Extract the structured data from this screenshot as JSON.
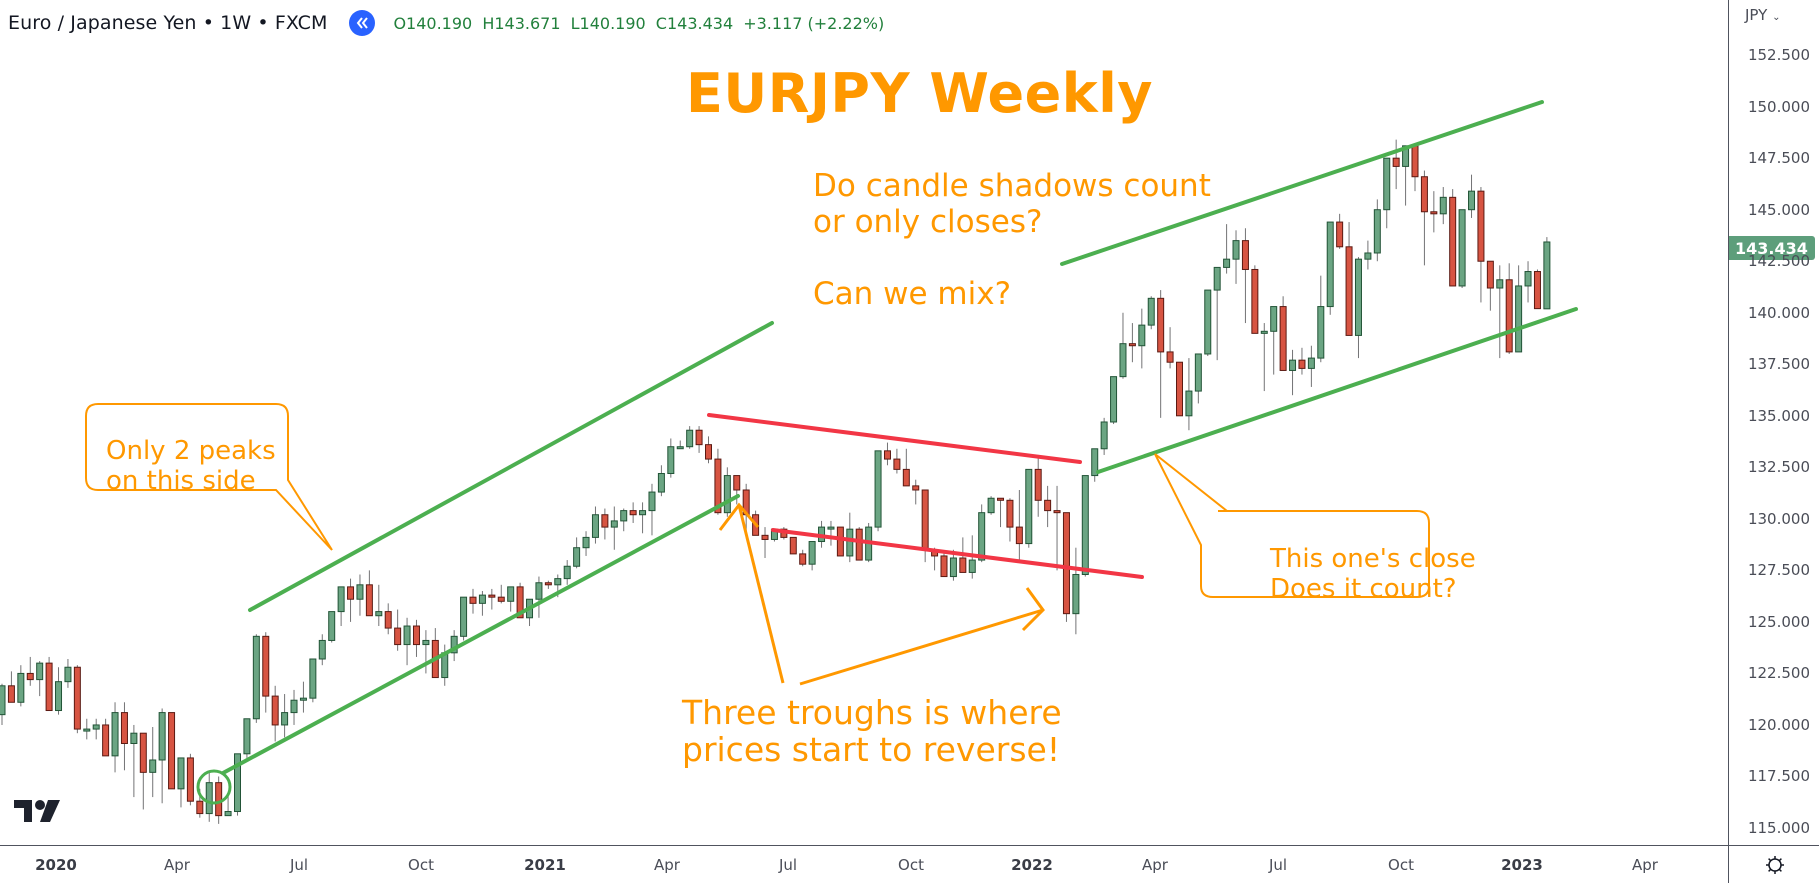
{
  "header": {
    "symbol_title": "Euro / Japanese Yen • 1W • FXCM",
    "collapse_icon": "double-chevron-left-icon",
    "ohlc": {
      "open": "O140.190",
      "high": "H143.671",
      "low": "L140.190",
      "close": "C143.434",
      "change": "+3.117 (+2.22%)"
    }
  },
  "price_axis": {
    "currency": "JPY",
    "currency_dropdown_icon": "chevron-down-icon",
    "current_price": "143.434",
    "labels": [
      "152.500",
      "150.000",
      "147.500",
      "145.000",
      "142.500",
      "140.000",
      "137.500",
      "135.000",
      "132.500",
      "130.000",
      "127.500",
      "125.000",
      "122.500",
      "120.000",
      "117.500",
      "115.000"
    ]
  },
  "time_axis": {
    "labels": [
      {
        "text": "2020",
        "year": true
      },
      {
        "text": "Apr",
        "year": false
      },
      {
        "text": "Jul",
        "year": false
      },
      {
        "text": "Oct",
        "year": false
      },
      {
        "text": "2021",
        "year": true
      },
      {
        "text": "Apr",
        "year": false
      },
      {
        "text": "Jul",
        "year": false
      },
      {
        "text": "Oct",
        "year": false
      },
      {
        "text": "2022",
        "year": true
      },
      {
        "text": "Apr",
        "year": false
      },
      {
        "text": "Jul",
        "year": false
      },
      {
        "text": "Oct",
        "year": false
      },
      {
        "text": "2023",
        "year": true
      },
      {
        "text": "Apr",
        "year": false
      }
    ],
    "settings_icon": "gear-icon"
  },
  "annotations": {
    "title": "EURJPY Weekly",
    "question_line1": "Do candle shadows count",
    "question_line2": "or only closes?",
    "question_mix": "Can we mix?",
    "callout_peaks_line1": "Only 2 peaks",
    "callout_peaks_line2": "on this side",
    "callout_close_line1": "This one's close",
    "callout_close_line2": "Does it count?",
    "troughs_line1": "Three troughs is where",
    "troughs_line2": "prices start to reverse!"
  },
  "colors": {
    "up": "#6ba583",
    "up_border": "#225437",
    "down": "#d75442",
    "down_border": "#5b1a13",
    "wick": "#737375",
    "channel_green": "#4caf50",
    "channel_red": "#f23645",
    "annotation": "#ff9800",
    "current_price_bg": "#5d9e7b"
  },
  "chart_data": {
    "type": "candlestick",
    "title": "EURJPY Weekly",
    "instrument": "Euro / Japanese Yen",
    "timeframe": "1W",
    "source": "FXCM",
    "ylabel": "JPY",
    "ylim": [
      114.0,
      154.0
    ],
    "y_ticks": [
      115.0,
      117.5,
      120.0,
      122.5,
      125.0,
      127.5,
      130.0,
      132.5,
      135.0,
      137.5,
      140.0,
      142.5,
      145.0,
      147.5,
      150.0,
      152.5
    ],
    "x_ticks": [
      "2020",
      "Apr",
      "Jul",
      "Oct",
      "2021",
      "Apr",
      "Jul",
      "Oct",
      "2022",
      "Apr",
      "Jul",
      "Oct",
      "2023",
      "Apr"
    ],
    "last_bar": {
      "open": 140.19,
      "high": 143.671,
      "low": 140.19,
      "close": 143.434,
      "change": 3.117,
      "change_pct": 2.22
    },
    "candles": [
      [
        120.5,
        122.0,
        120.0,
        121.9
      ],
      [
        121.9,
        122.6,
        121.3,
        121.1
      ],
      [
        121.1,
        122.9,
        120.9,
        122.5
      ],
      [
        122.5,
        123.3,
        121.9,
        122.2
      ],
      [
        122.2,
        123.1,
        121.4,
        123.0
      ],
      [
        123.0,
        123.3,
        120.8,
        120.7
      ],
      [
        120.7,
        122.8,
        120.5,
        122.1
      ],
      [
        122.1,
        123.2,
        121.8,
        122.8
      ],
      [
        122.8,
        122.9,
        119.6,
        119.8
      ],
      [
        119.8,
        120.3,
        119.3,
        119.8
      ],
      [
        119.8,
        120.3,
        119.3,
        120.0
      ],
      [
        120.0,
        120.3,
        118.7,
        118.5
      ],
      [
        118.5,
        121.1,
        117.7,
        120.6
      ],
      [
        120.6,
        121.1,
        117.8,
        119.1
      ],
      [
        119.1,
        120.0,
        116.5,
        119.6
      ],
      [
        119.6,
        119.3,
        115.9,
        117.7
      ],
      [
        117.7,
        119.9,
        116.5,
        118.3
      ],
      [
        118.3,
        120.8,
        116.2,
        120.6
      ],
      [
        120.6,
        120.6,
        116.9,
        116.9
      ],
      [
        116.9,
        118.2,
        116.0,
        118.4
      ],
      [
        118.4,
        118.6,
        116.1,
        116.3
      ],
      [
        116.3,
        116.9,
        115.5,
        115.7
      ],
      [
        115.7,
        117.8,
        115.3,
        117.2
      ],
      [
        117.2,
        117.5,
        115.2,
        115.6
      ],
      [
        115.6,
        116.6,
        115.7,
        115.8
      ],
      [
        115.8,
        118.5,
        115.6,
        118.6
      ],
      [
        118.6,
        120.0,
        118.4,
        120.3
      ],
      [
        120.3,
        124.4,
        120.1,
        124.3
      ],
      [
        124.3,
        124.5,
        120.6,
        121.4
      ],
      [
        121.4,
        121.9,
        119.2,
        120.0
      ],
      [
        120.0,
        121.5,
        119.4,
        120.6
      ],
      [
        120.6,
        121.7,
        120.0,
        121.2
      ],
      [
        121.2,
        122.1,
        120.6,
        121.3
      ],
      [
        121.3,
        123.1,
        121.1,
        123.2
      ],
      [
        123.2,
        124.4,
        122.9,
        124.1
      ],
      [
        124.1,
        125.0,
        124.0,
        125.5
      ],
      [
        125.5,
        126.2,
        124.8,
        126.7
      ],
      [
        126.7,
        127.1,
        125.0,
        126.1
      ],
      [
        126.1,
        127.3,
        125.3,
        126.8
      ],
      [
        126.8,
        127.5,
        125.3,
        125.3
      ],
      [
        125.3,
        126.8,
        124.8,
        125.5
      ],
      [
        125.5,
        125.9,
        124.4,
        124.7
      ],
      [
        124.7,
        125.6,
        123.6,
        123.9
      ],
      [
        123.9,
        125.2,
        122.9,
        124.8
      ],
      [
        124.8,
        125.1,
        123.3,
        123.9
      ],
      [
        123.9,
        124.6,
        122.5,
        124.1
      ],
      [
        124.1,
        124.7,
        123.0,
        122.3
      ],
      [
        122.3,
        123.9,
        121.9,
        123.5
      ],
      [
        123.5,
        124.6,
        123.1,
        124.3
      ],
      [
        124.3,
        125.0,
        124.1,
        126.2
      ],
      [
        126.2,
        126.6,
        125.4,
        125.9
      ],
      [
        125.9,
        126.5,
        125.3,
        126.3
      ],
      [
        126.3,
        126.6,
        125.6,
        126.2
      ],
      [
        126.2,
        126.8,
        125.9,
        126.0
      ],
      [
        126.0,
        126.5,
        125.5,
        126.7
      ],
      [
        126.7,
        126.9,
        125.4,
        125.2
      ],
      [
        125.2,
        126.0,
        124.8,
        126.1
      ],
      [
        126.1,
        127.2,
        125.2,
        126.9
      ],
      [
        126.9,
        127.0,
        126.6,
        126.8
      ],
      [
        126.8,
        127.3,
        126.2,
        127.1
      ],
      [
        127.1,
        128.0,
        126.8,
        127.7
      ],
      [
        127.7,
        129.1,
        127.6,
        128.6
      ],
      [
        128.6,
        129.4,
        128.2,
        129.1
      ],
      [
        129.1,
        130.6,
        128.8,
        130.2
      ],
      [
        130.2,
        130.5,
        129.0,
        129.6
      ],
      [
        129.6,
        130.6,
        128.5,
        129.9
      ],
      [
        129.9,
        130.5,
        129.4,
        130.4
      ],
      [
        130.4,
        130.8,
        129.8,
        130.2
      ],
      [
        130.2,
        130.8,
        129.3,
        130.4
      ],
      [
        130.4,
        131.7,
        129.2,
        131.3
      ],
      [
        131.3,
        132.6,
        131.1,
        132.2
      ],
      [
        132.2,
        133.9,
        132.0,
        133.5
      ],
      [
        133.5,
        133.8,
        133.4,
        133.5
      ],
      [
        133.5,
        134.5,
        133.4,
        134.3
      ],
      [
        134.3,
        134.5,
        133.2,
        133.6
      ],
      [
        133.6,
        134.0,
        132.7,
        132.9
      ],
      [
        132.9,
        133.4,
        130.2,
        130.3
      ],
      [
        130.3,
        132.5,
        130.1,
        132.1
      ],
      [
        132.1,
        132.0,
        130.7,
        131.4
      ],
      [
        131.4,
        131.7,
        129.3,
        130.2
      ],
      [
        130.2,
        130.4,
        129.6,
        129.2
      ],
      [
        129.2,
        129.6,
        128.1,
        129.0
      ],
      [
        129.0,
        129.2,
        128.9,
        129.5
      ],
      [
        129.5,
        129.6,
        129.0,
        129.1
      ],
      [
        129.1,
        129.1,
        128.7,
        128.3
      ],
      [
        128.3,
        128.5,
        127.7,
        127.8
      ],
      [
        127.8,
        128.9,
        127.5,
        128.9
      ],
      [
        128.9,
        129.9,
        128.6,
        129.6
      ],
      [
        129.6,
        129.9,
        128.7,
        129.6
      ],
      [
        129.6,
        129.6,
        128.4,
        128.2
      ],
      [
        128.2,
        130.3,
        127.9,
        129.5
      ],
      [
        129.5,
        129.6,
        128.3,
        128.0
      ],
      [
        128.0,
        129.8,
        127.9,
        129.6
      ],
      [
        129.6,
        132.9,
        129.4,
        133.3
      ],
      [
        133.3,
        133.7,
        132.6,
        132.9
      ],
      [
        132.9,
        133.4,
        132.2,
        132.4
      ],
      [
        132.4,
        133.4,
        131.6,
        131.6
      ],
      [
        131.6,
        131.9,
        130.7,
        131.4
      ],
      [
        131.4,
        131.4,
        127.9,
        128.5
      ],
      [
        128.5,
        128.6,
        127.5,
        128.2
      ],
      [
        128.2,
        128.4,
        127.3,
        127.2
      ],
      [
        127.2,
        128.5,
        127.0,
        128.1
      ],
      [
        128.1,
        129.1,
        127.9,
        127.4
      ],
      [
        127.4,
        129.2,
        127.1,
        128.0
      ],
      [
        128.0,
        130.7,
        127.9,
        130.3
      ],
      [
        130.3,
        131.1,
        130.2,
        131.0
      ],
      [
        131.0,
        130.9,
        129.6,
        130.9
      ],
      [
        130.9,
        131.0,
        128.9,
        129.6
      ],
      [
        129.6,
        131.4,
        127.9,
        128.8
      ],
      [
        128.8,
        132.1,
        128.6,
        132.4
      ],
      [
        132.4,
        133.1,
        130.1,
        130.9
      ],
      [
        130.9,
        131.6,
        129.6,
        130.4
      ],
      [
        130.4,
        131.6,
        127.5,
        130.3
      ],
      [
        130.3,
        130.3,
        125.0,
        125.4
      ],
      [
        125.4,
        128.6,
        124.4,
        127.3
      ],
      [
        127.3,
        132.1,
        127.2,
        132.1
      ],
      [
        132.1,
        133.1,
        131.8,
        133.4
      ],
      [
        133.4,
        134.9,
        133.1,
        134.7
      ],
      [
        134.7,
        136.3,
        134.6,
        136.9
      ],
      [
        136.9,
        140.0,
        136.8,
        138.5
      ],
      [
        138.5,
        139.5,
        137.6,
        138.4
      ],
      [
        138.4,
        140.2,
        137.3,
        139.4
      ],
      [
        139.4,
        140.8,
        139.2,
        140.7
      ],
      [
        140.7,
        141.1,
        134.9,
        138.1
      ],
      [
        138.1,
        139.3,
        137.3,
        137.6
      ],
      [
        137.6,
        137.5,
        135.1,
        135.0
      ],
      [
        135.0,
        137.8,
        134.3,
        136.2
      ],
      [
        136.2,
        137.6,
        135.6,
        138.0
      ],
      [
        138.0,
        140.6,
        137.9,
        141.1
      ],
      [
        141.1,
        141.4,
        137.7,
        142.2
      ],
      [
        142.2,
        144.3,
        141.9,
        142.6
      ],
      [
        142.6,
        144.0,
        141.4,
        143.5
      ],
      [
        143.5,
        144.1,
        139.5,
        142.1
      ],
      [
        142.1,
        142.3,
        139.3,
        139.0
      ],
      [
        139.0,
        139.5,
        136.2,
        139.1
      ],
      [
        139.1,
        140.2,
        137.0,
        140.3
      ],
      [
        140.3,
        140.8,
        137.2,
        137.2
      ],
      [
        137.2,
        138.2,
        136.0,
        137.7
      ],
      [
        137.7,
        138.3,
        137.0,
        137.3
      ],
      [
        137.3,
        138.4,
        136.4,
        137.8
      ],
      [
        137.8,
        141.8,
        137.6,
        140.3
      ],
      [
        140.3,
        144.3,
        139.9,
        144.4
      ],
      [
        144.4,
        144.8,
        143.1,
        143.2
      ],
      [
        143.2,
        144.4,
        138.9,
        138.9
      ],
      [
        138.9,
        142.7,
        137.8,
        142.6
      ],
      [
        142.6,
        143.5,
        142.1,
        142.9
      ],
      [
        142.9,
        145.5,
        142.5,
        145.0
      ],
      [
        145.0,
        146.0,
        144.1,
        147.5
      ],
      [
        147.5,
        148.4,
        146.0,
        147.1
      ],
      [
        147.1,
        147.9,
        145.2,
        148.1
      ],
      [
        148.1,
        148.0,
        145.9,
        146.6
      ],
      [
        146.6,
        146.9,
        142.3,
        144.9
      ],
      [
        144.9,
        145.9,
        143.9,
        144.8
      ],
      [
        144.8,
        146.1,
        144.3,
        145.6
      ],
      [
        145.6,
        146.0,
        141.7,
        141.3
      ],
      [
        141.3,
        144.6,
        141.2,
        145.0
      ],
      [
        145.0,
        146.7,
        144.6,
        145.9
      ],
      [
        145.9,
        146.1,
        140.5,
        142.5
      ],
      [
        142.5,
        141.6,
        140.1,
        141.2
      ],
      [
        141.2,
        142.3,
        137.8,
        141.6
      ],
      [
        141.6,
        142.4,
        138.0,
        138.1
      ],
      [
        138.1,
        142.3,
        138.3,
        141.3
      ],
      [
        141.3,
        142.5,
        140.5,
        142.0
      ],
      [
        142.0,
        142.1,
        140.2,
        140.2
      ],
      [
        140.19,
        143.671,
        140.19,
        143.434
      ]
    ],
    "drawings": [
      {
        "type": "trendline",
        "color": "green",
        "role": "ascending channel upper (2020-2021)",
        "from": [
          "Jun 2020",
          124.4
        ],
        "to": [
          "Jul 2021",
          142.4
        ]
      },
      {
        "type": "trendline",
        "color": "green",
        "role": "ascending channel lower (2020-2021)",
        "from": [
          "May 2020",
          115.7
        ],
        "to": [
          "Jun 2021",
          130.1
        ]
      },
      {
        "type": "trendline",
        "color": "red",
        "role": "descending channel upper (2021-2022)",
        "from": [
          "Jun 2021",
          134.2
        ],
        "to": [
          "Mar 2022",
          131.9
        ]
      },
      {
        "type": "trendline",
        "color": "red",
        "role": "descending channel lower (2021-2022)",
        "from": [
          "Jul 2021",
          128.4
        ],
        "to": [
          "Apr 2022",
          126.1
        ]
      },
      {
        "type": "trendline",
        "color": "green",
        "role": "ascending channel upper (2022-2023)",
        "from": [
          "Mar 2022",
          142.7
        ],
        "to": [
          "Feb 2023",
          150.3
        ]
      },
      {
        "type": "trendline",
        "color": "green",
        "role": "ascending channel lower (2022-2023)",
        "from": [
          "Mar 2022",
          131.3
        ],
        "to": [
          "Mar 2023",
          139.8
        ]
      },
      {
        "type": "circle",
        "color": "green",
        "role": "swing low marker",
        "at": [
          "May 2020",
          115.3
        ]
      }
    ]
  }
}
